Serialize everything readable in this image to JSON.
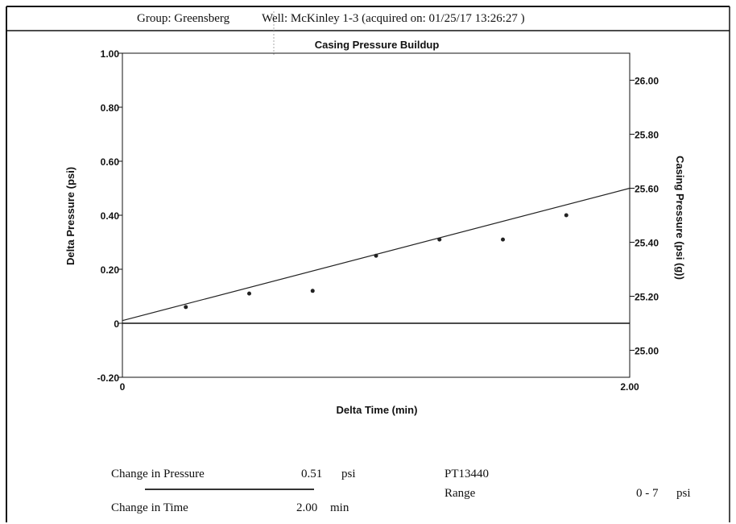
{
  "header": {
    "group": "Group: Greensberg",
    "well": "Well: McKinley 1-3 (acquired on: 01/25/17 13:26:27 )"
  },
  "chart_data": {
    "type": "scatter",
    "title": "Casing Pressure Buildup",
    "xlabel": "Delta Time (min)",
    "ylabel": "Delta Pressure (psi)",
    "ylabel_right": "Casing Pressure (psi (g))",
    "xlim": [
      0,
      2
    ],
    "ylim": [
      -0.2,
      1.0
    ],
    "ylim_right": [
      24.9,
      26.1
    ],
    "x_ticks": [
      "0",
      "2.00"
    ],
    "x_tick_values": [
      0,
      2
    ],
    "y_ticks": [
      "-0.20",
      "0",
      "0.20",
      "0.40",
      "0.60",
      "0.80",
      "1.00"
    ],
    "y_tick_values": [
      -0.2,
      0,
      0.2,
      0.4,
      0.6,
      0.8,
      1.0
    ],
    "y_right_ticks": [
      "25.00",
      "25.20",
      "25.40",
      "25.60",
      "25.80",
      "26.00"
    ],
    "y_right_tick_values": [
      25.0,
      25.2,
      25.4,
      25.6,
      25.8,
      26.0
    ],
    "points": [
      {
        "x": 0.25,
        "y": 0.06
      },
      {
        "x": 0.5,
        "y": 0.11
      },
      {
        "x": 0.75,
        "y": 0.12
      },
      {
        "x": 1.0,
        "y": 0.25
      },
      {
        "x": 1.25,
        "y": 0.31
      },
      {
        "x": 1.5,
        "y": 0.31
      },
      {
        "x": 1.75,
        "y": 0.4
      }
    ],
    "fit_line": {
      "x": [
        0,
        2
      ],
      "y": [
        0.01,
        0.5
      ]
    },
    "zero_line": 0,
    "grid": false
  },
  "footer": {
    "change_pressure_label": "Change in Pressure",
    "change_pressure_value": "0.51",
    "change_pressure_unit": "psi",
    "change_time_label": "Change in Time",
    "change_time_value": "2.00",
    "change_time_unit": "min",
    "sensor_id": "PT13440",
    "range_label": "Range",
    "range_value": "0 - 7",
    "range_unit": "psi"
  }
}
